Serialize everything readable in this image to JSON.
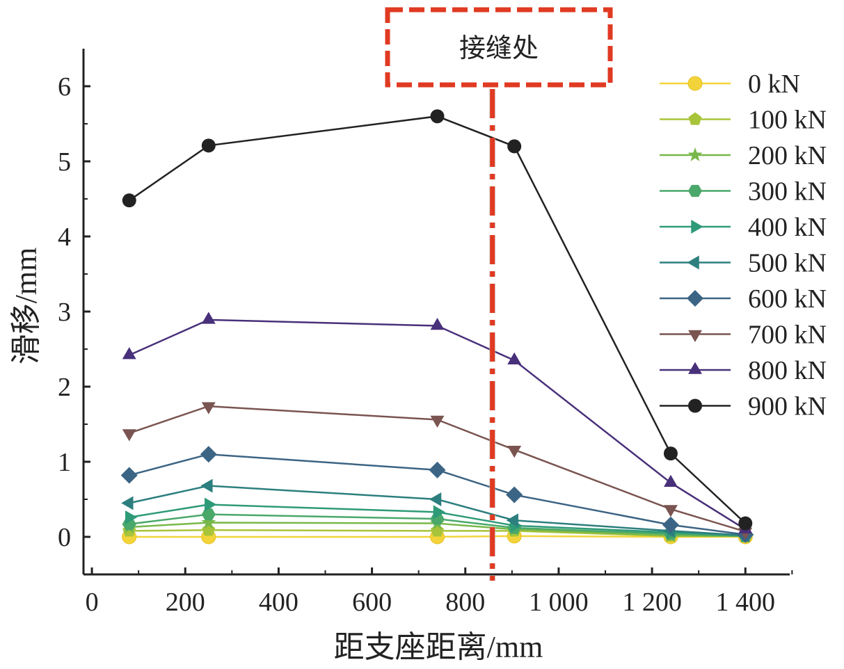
{
  "chart_data": {
    "type": "line",
    "xlabel": "距支座距离/mm",
    "ylabel": "滑移/mm",
    "xlim": [
      -18,
      1495
    ],
    "ylim": [
      -0.5,
      6.5
    ],
    "xticks": [
      0,
      200,
      400,
      600,
      800,
      1000,
      1200,
      1400
    ],
    "xtick_labels": [
      "0",
      "200",
      "400",
      "600",
      "800",
      "1 000",
      "1 200",
      "1 400"
    ],
    "yticks": [
      0,
      1,
      2,
      3,
      4,
      5,
      6
    ],
    "ytick_labels": [
      "0",
      "1",
      "2",
      "3",
      "4",
      "5",
      "6"
    ],
    "x": [
      80,
      250,
      740,
      905,
      1240,
      1400
    ],
    "series": [
      {
        "name": "0 kN",
        "color": "#f2d43a",
        "marker": "circle-hollow",
        "values": [
          0,
          0,
          0,
          0.01,
          0,
          0
        ]
      },
      {
        "name": "100 kN",
        "color": "#a8c43a",
        "marker": "pentagon",
        "values": [
          0.08,
          0.09,
          0.08,
          0.08,
          0.01,
          0.01
        ]
      },
      {
        "name": "200 kN",
        "color": "#78b84a",
        "marker": "star",
        "values": [
          0.13,
          0.19,
          0.18,
          0.1,
          0.02,
          0.01
        ]
      },
      {
        "name": "300 kN",
        "color": "#4aa86a",
        "marker": "hexagon",
        "values": [
          0.17,
          0.3,
          0.24,
          0.12,
          0.04,
          0.01
        ]
      },
      {
        "name": "400 kN",
        "color": "#2e9a78",
        "marker": "triangle-right",
        "values": [
          0.26,
          0.43,
          0.33,
          0.15,
          0.06,
          0.02
        ]
      },
      {
        "name": "500 kN",
        "color": "#2c7f7e",
        "marker": "triangle-left",
        "values": [
          0.45,
          0.68,
          0.5,
          0.22,
          0.08,
          0.02
        ]
      },
      {
        "name": "600 kN",
        "color": "#3c6484",
        "marker": "diamond",
        "values": [
          0.82,
          1.1,
          0.89,
          0.56,
          0.16,
          0.03
        ]
      },
      {
        "name": "700 kN",
        "color": "#7a5450",
        "marker": "triangle-down",
        "values": [
          1.38,
          1.74,
          1.56,
          1.16,
          0.37,
          0.07
        ]
      },
      {
        "name": "800 kN",
        "color": "#48307a",
        "marker": "triangle-up",
        "values": [
          2.42,
          2.89,
          2.81,
          2.35,
          0.72,
          0.1
        ]
      },
      {
        "name": "900 kN",
        "color": "#222222",
        "marker": "circle",
        "values": [
          4.48,
          5.21,
          5.6,
          5.2,
          1.11,
          0.18
        ]
      }
    ],
    "legend_position": "right",
    "annotation": {
      "text": "接缝处",
      "x": 858,
      "color": "#e03a22"
    }
  }
}
